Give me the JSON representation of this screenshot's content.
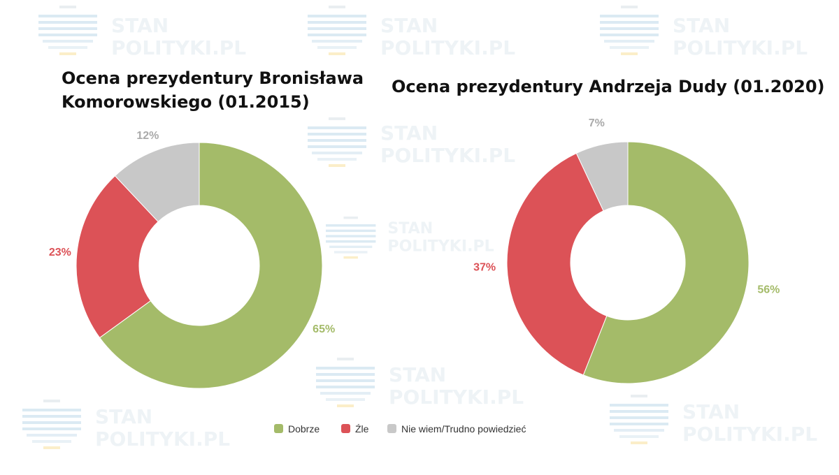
{
  "watermark": {
    "line1": "STAN",
    "line2": "POLITYKI.PL"
  },
  "chart_data": [
    {
      "type": "pie",
      "donut": true,
      "title_lines": [
        "Ocena prezydentury Bronisława",
        "Komorowskiego (01.2015)"
      ],
      "categories": [
        "Dobrze",
        "Źle",
        "Nie wiem/Trudno powiedzieć"
      ],
      "values": [
        65,
        23,
        12
      ],
      "labels": [
        "65%",
        "23%",
        "12%"
      ],
      "colors": [
        "#a4bb69",
        "#dc5257",
        "#c8c8c8"
      ]
    },
    {
      "type": "pie",
      "donut": true,
      "title_lines": [
        "Ocena prezydentury Andrzeja Dudy (01.2020)"
      ],
      "categories": [
        "Dobrze",
        "Źle",
        "Nie wiem/Trudno powiedzieć"
      ],
      "values": [
        56,
        37,
        7
      ],
      "labels": [
        "56%",
        "37%",
        "7%"
      ],
      "colors": [
        "#a4bb69",
        "#dc5257",
        "#c8c8c8"
      ]
    }
  ],
  "legend": {
    "items": [
      {
        "label": "Dobrze",
        "color": "#a4bb69"
      },
      {
        "label": "Źle",
        "color": "#dc5257"
      },
      {
        "label": "Nie wiem/Trudno powiedzieć",
        "color": "#c8c8c8"
      }
    ]
  }
}
